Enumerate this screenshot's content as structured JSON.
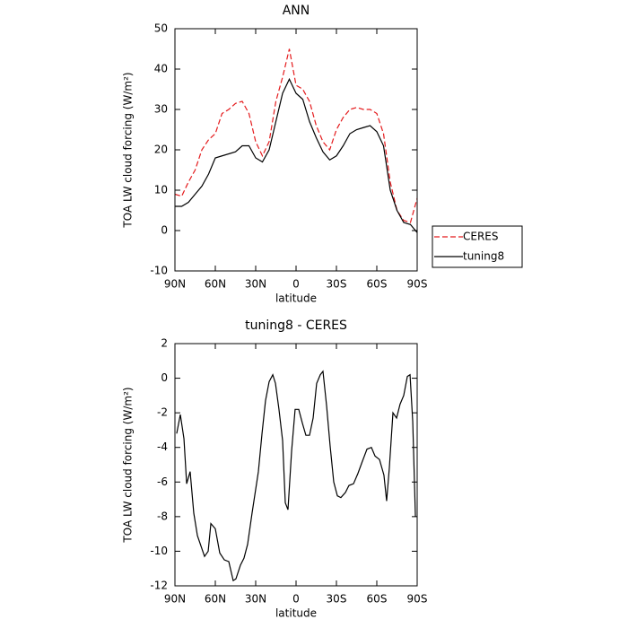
{
  "chart_data": [
    {
      "type": "line",
      "title": "ANN",
      "xlabel": "latitude",
      "ylabel": "TOA LW cloud forcing (W/m²)",
      "x": [
        90,
        85,
        80,
        75,
        70,
        65,
        60,
        55,
        50,
        45,
        40,
        35,
        30,
        25,
        20,
        15,
        10,
        5,
        0,
        -5,
        -10,
        -15,
        -20,
        -25,
        -30,
        -35,
        -40,
        -45,
        -50,
        -55,
        -60,
        -65,
        -70,
        -75,
        -80,
        -85,
        -90
      ],
      "series": [
        {
          "name": "CERES",
          "color": "#e41a1c",
          "linestyle": "dashed",
          "values": [
            9,
            8.5,
            12,
            15,
            20,
            22.5,
            24,
            29,
            30,
            31.5,
            32,
            29,
            22,
            18.5,
            22,
            32,
            38,
            45,
            36,
            35,
            32,
            26,
            22,
            20,
            25,
            28,
            30,
            30.5,
            30,
            30,
            29,
            24,
            12,
            5,
            2.5,
            2,
            8
          ]
        },
        {
          "name": "tuning8",
          "color": "#000000",
          "linestyle": "solid",
          "values": [
            6,
            6,
            7,
            9,
            11,
            14,
            18,
            18.5,
            19,
            19.5,
            21,
            21,
            18,
            17,
            20,
            27,
            34,
            37.5,
            34,
            32.5,
            27,
            23,
            19.5,
            17.5,
            18.5,
            21,
            24,
            25,
            25.5,
            26,
            24.5,
            21,
            10,
            5,
            2,
            1.5,
            -0.5
          ]
        }
      ],
      "xlim": [
        90,
        -90
      ],
      "xticks": [
        {
          "value": 90,
          "label": "90N"
        },
        {
          "value": 60,
          "label": "60N"
        },
        {
          "value": 30,
          "label": "30N"
        },
        0,
        {
          "value": -30,
          "label": "30S"
        },
        {
          "value": -60,
          "label": "60S"
        },
        {
          "value": -90,
          "label": "90S"
        }
      ],
      "ylim": [
        -10,
        50
      ],
      "yticks": [
        -10,
        0,
        10,
        20,
        30,
        40,
        50
      ],
      "legend": "outside-right"
    },
    {
      "type": "line",
      "title": "tuning8 - CERES",
      "xlabel": "latitude",
      "ylabel": "TOA LW cloud forcing (W/m²)",
      "x": [
        88.7,
        86,
        83.3,
        81.3,
        78.7,
        76,
        73.3,
        68,
        65.3,
        63.3,
        60,
        56.7,
        53.3,
        50,
        46.7,
        44.7,
        41.3,
        38.7,
        36,
        32.7,
        28,
        25.3,
        22.7,
        20,
        17.3,
        15.3,
        12.7,
        10,
        8,
        6,
        3.3,
        0.7,
        -2,
        -4.7,
        -7.3,
        -10,
        -12.7,
        -15.3,
        -18,
        -20,
        -22.7,
        -25.3,
        -28,
        -30.7,
        -33.3,
        -36.7,
        -39.3,
        -42.7,
        -46,
        -49.3,
        -52.7,
        -56,
        -58.7,
        -62,
        -65.3,
        -67.3,
        -69.3,
        -72,
        -74.7,
        -77.3,
        -80,
        -82.7,
        -84.7,
        -86.7,
        -88.7
      ],
      "series": [
        {
          "color": "#000000",
          "linestyle": "solid",
          "values": [
            -3.2,
            -2.1,
            -3.5,
            -6.1,
            -5.4,
            -7.8,
            -9.1,
            -10.3,
            -10,
            -8.4,
            -8.7,
            -10.1,
            -10.5,
            -10.6,
            -11.7,
            -11.6,
            -10.8,
            -10.4,
            -9.6,
            -7.8,
            -5.4,
            -3.2,
            -1.3,
            -0.2,
            0.2,
            -0.3,
            -1.8,
            -3.6,
            -7.2,
            -7.6,
            -4.2,
            -1.8,
            -1.8,
            -2.6,
            -3.3,
            -3.3,
            -2.3,
            -0.3,
            0.2,
            0.4,
            -1.6,
            -3.9,
            -6,
            -6.8,
            -6.9,
            -6.6,
            -6.2,
            -6.1,
            -5.5,
            -4.8,
            -4.1,
            -4,
            -4.5,
            -4.7,
            -5.6,
            -7.1,
            -5.2,
            -2,
            -2.3,
            -1.5,
            -1,
            0.1,
            0.2,
            -2.5,
            -8
          ]
        }
      ],
      "xlim": [
        90,
        -90
      ],
      "xticks": [
        {
          "value": 90,
          "label": "90N"
        },
        {
          "value": 60,
          "label": "60N"
        },
        {
          "value": 30,
          "label": "30N"
        },
        0,
        {
          "value": -30,
          "label": "30S"
        },
        {
          "value": -60,
          "label": "60S"
        },
        {
          "value": -90,
          "label": "90S"
        }
      ],
      "ylim": [
        -12,
        2
      ],
      "yticks": [
        -12,
        -10,
        -8,
        -6,
        -4,
        -2,
        0,
        2
      ]
    }
  ]
}
